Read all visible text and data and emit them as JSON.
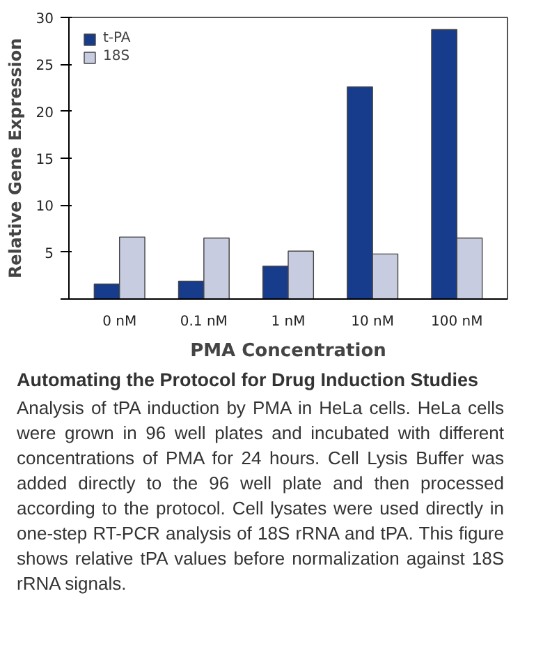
{
  "chart_data": {
    "type": "bar",
    "title": "Automating the Protocol for Drug Induction Studies",
    "annotations": [
      "Analysis of tPA induction by PMA in HeLa cells. HeLa cells were grown in 96 well plates and incubated with different concentrations of PMA for 24 hours. Cell Lysis Buffer was added directly to the 96 well plate and then processed according to the protocol. Cell lysates were used directly in one-step RT-PCR analysis of 18S rRNA and tPA. This figure shows relative tPA values before normalization against 18S rRNA signals."
    ],
    "xlabel": "PMA Concentration",
    "ylabel": "Relative Gene Expression",
    "categories": [
      "0 nM",
      "0.1 nM",
      "1 nM",
      "10 nM",
      "100 nM"
    ],
    "series": [
      {
        "name": "t-PA",
        "color": "#173c8c",
        "values": [
          1.6,
          1.9,
          3.5,
          22.6,
          28.7
        ]
      },
      {
        "name": "18S",
        "color": "#c8cce0",
        "values": [
          6.6,
          6.5,
          5.1,
          4.8,
          6.5
        ]
      }
    ],
    "ylim": [
      0,
      30
    ],
    "yticks": [
      {
        "value": 0,
        "label": null
      },
      5,
      10,
      15,
      20,
      25,
      30
    ],
    "grid": false,
    "legend": "top left"
  }
}
